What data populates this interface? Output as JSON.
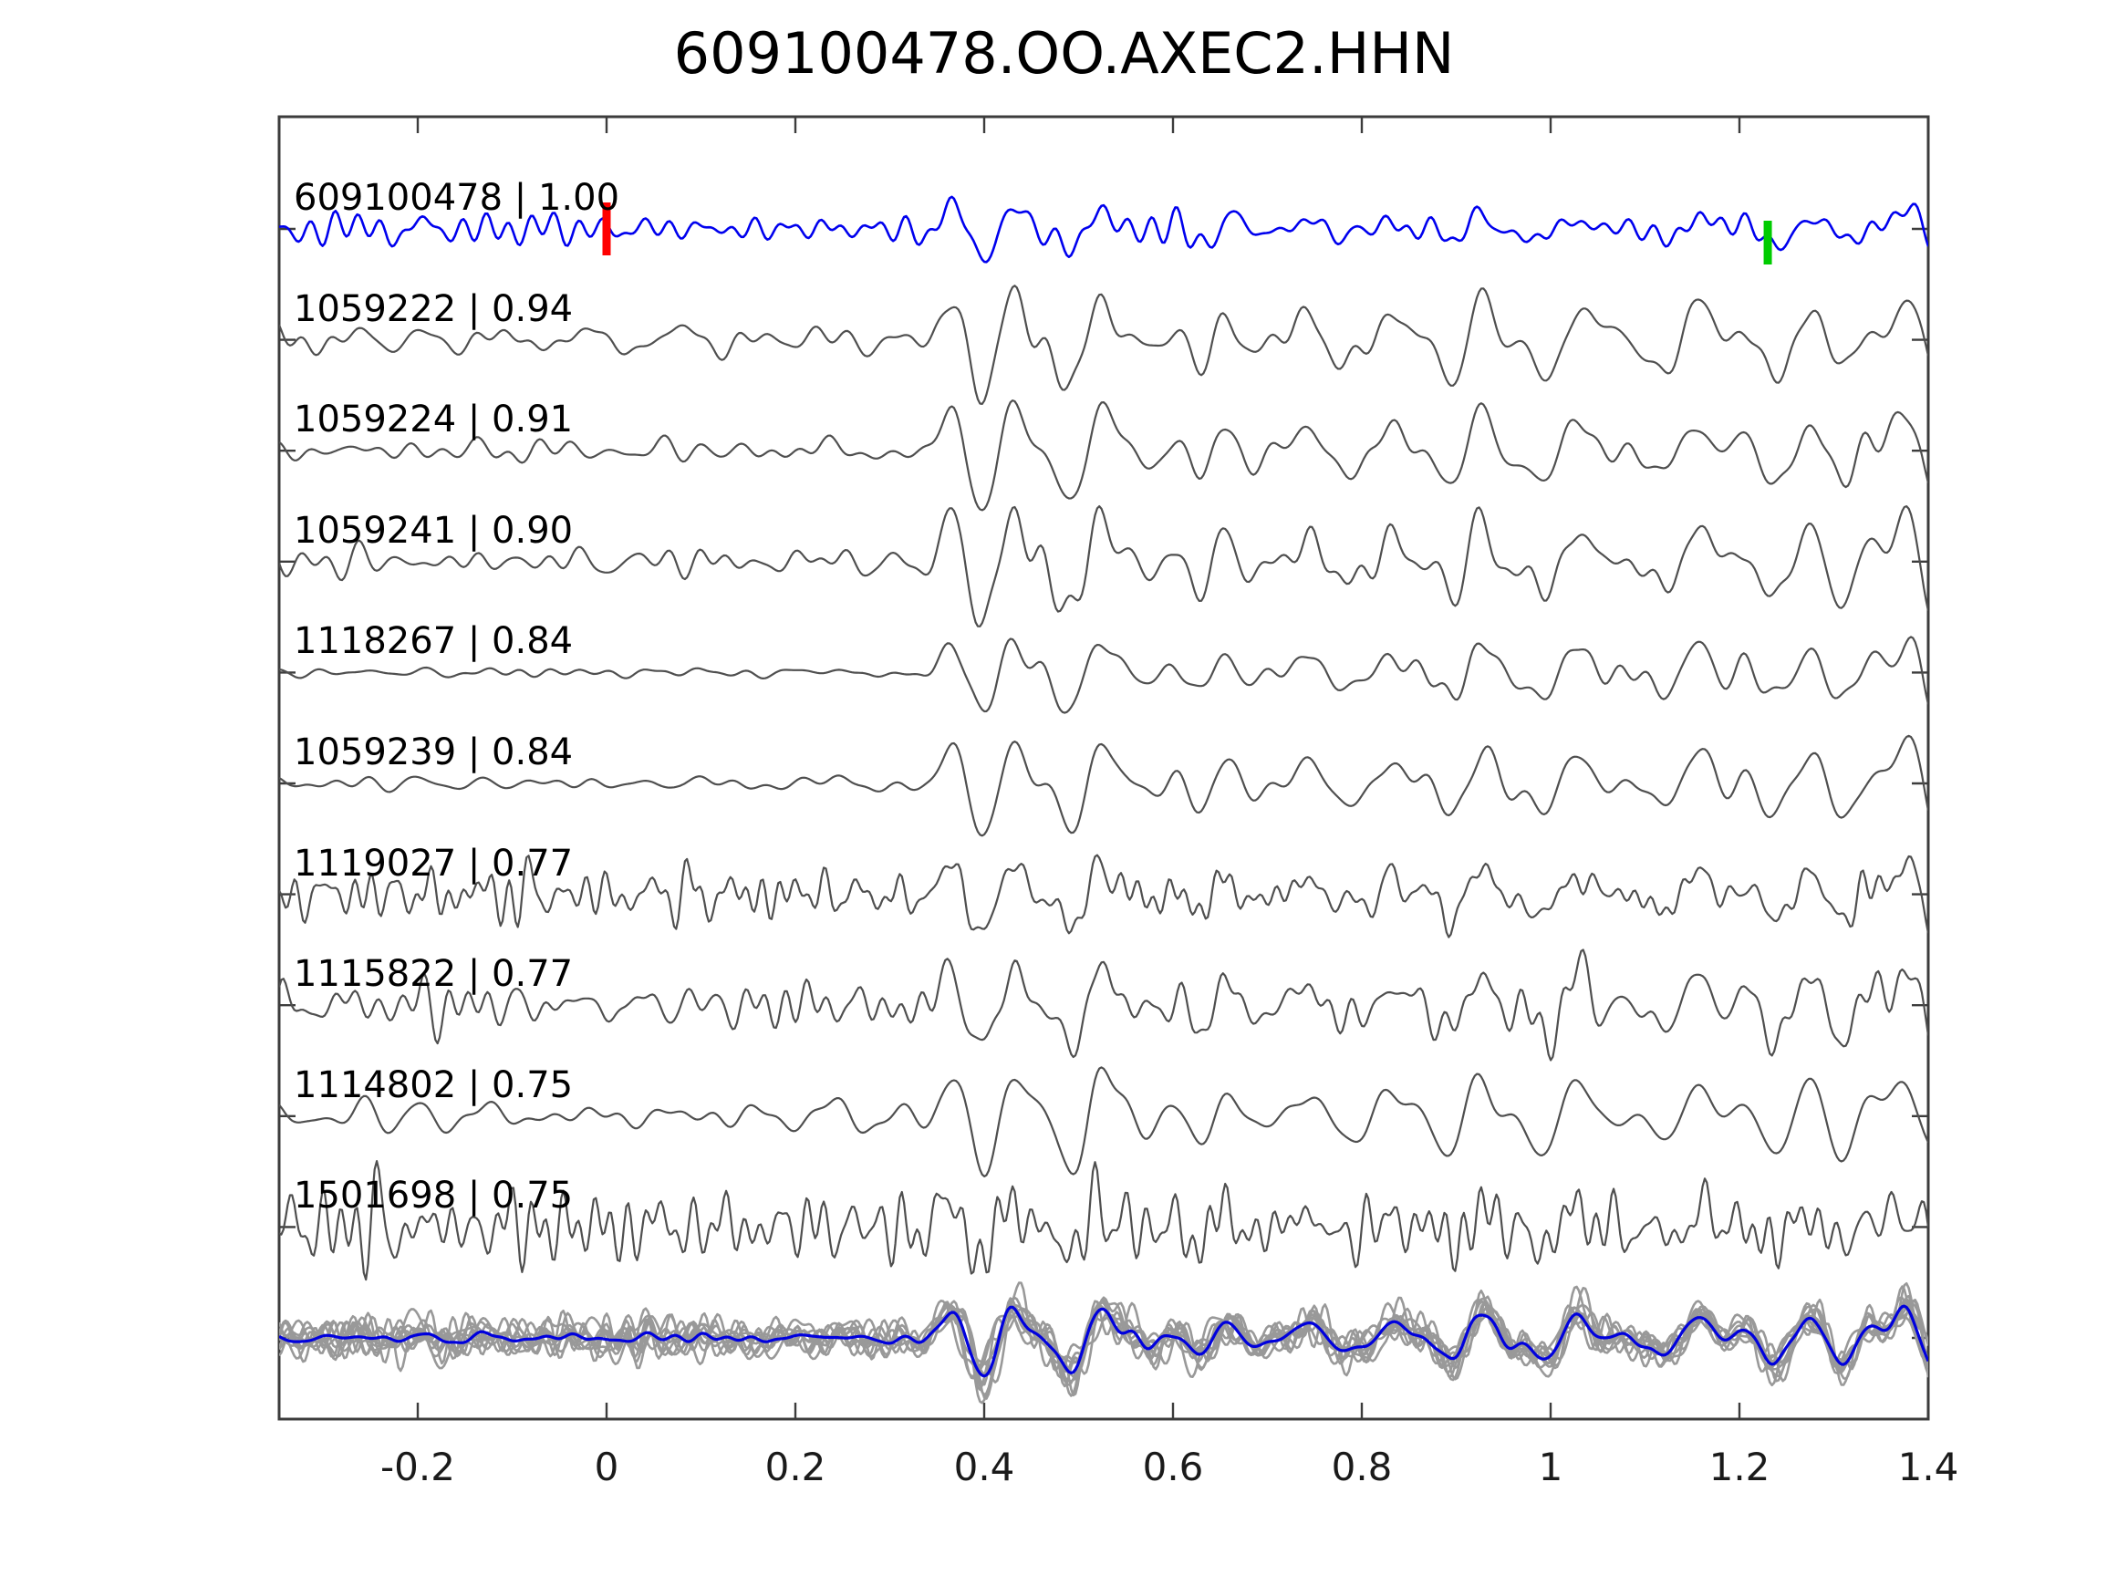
{
  "title": "609100478.OO.AXEC2.HHN",
  "chart_data": {
    "type": "line",
    "title": "609100478.OO.AXEC2.HHN",
    "xlabel": "",
    "ylabel": "",
    "xlim": [
      -0.347,
      1.4
    ],
    "grid": false,
    "legend": "none",
    "x_ticks": [
      {
        "v": -0.2,
        "label": "-0.2"
      },
      {
        "v": 0,
        "label": "0"
      },
      {
        "v": 0.2,
        "label": "0.2"
      },
      {
        "v": 0.4,
        "label": "0.4"
      },
      {
        "v": 0.6,
        "label": "0.6"
      },
      {
        "v": 0.8,
        "label": "0.8"
      },
      {
        "v": 1,
        "label": "1"
      },
      {
        "v": 1.2,
        "label": "1.2"
      },
      {
        "v": 1.4,
        "label": "1.4"
      }
    ],
    "colors": {
      "template_blue": "#0000ee",
      "match_gray": "#4f4f4f",
      "overlay_gray": "#999999",
      "overlay_blue": "#0000dd",
      "start_marker_red": "#ff0000",
      "pick_marker_green": "#00cc00",
      "spine": "#3c3c3c",
      "text": "#000000"
    },
    "markers": [
      {
        "name": "template-start-marker",
        "t": 0,
        "row": 0,
        "color": "#ff0000",
        "y_span": [
          -29,
          29
        ]
      },
      {
        "name": "pick-time-marker",
        "t": 1.23,
        "row": 0,
        "color": "#00cc00",
        "y_span": [
          -9,
          39
        ]
      }
    ],
    "traces": [
      {
        "id": "609100478",
        "cc": "1.00",
        "label": "609100478 | 1.00",
        "color": "#0000ee",
        "amp": 36,
        "share": 0.78,
        "freq_mult": 1.15,
        "seed": 21,
        "noise_env": [
          [
            -0.35,
            0.5
          ],
          [
            0.35,
            0.45
          ],
          [
            1.4,
            0.42
          ]
        ]
      },
      {
        "id": "1059222",
        "cc": "0.94",
        "label": "1059222 | 0.94",
        "color": "#4f4f4f",
        "amp": 60,
        "share": 1,
        "freq_mult": 1,
        "seed": 22,
        "noise_env": [
          [
            -0.35,
            0.28
          ],
          [
            1.4,
            0.3
          ]
        ]
      },
      {
        "id": "1059224",
        "cc": "0.91",
        "label": "1059224 | 0.91",
        "color": "#4f4f4f",
        "amp": 58,
        "share": 1,
        "freq_mult": 0.95,
        "seed": 23,
        "noise_env": [
          [
            -0.35,
            0.2
          ],
          [
            1.4,
            0.26
          ]
        ]
      },
      {
        "id": "1059241",
        "cc": "0.90",
        "label": "1059241 | 0.90",
        "color": "#4f4f4f",
        "amp": 62,
        "share": 1,
        "freq_mult": 1.05,
        "seed": 24,
        "noise_env": [
          [
            -0.35,
            0.32
          ],
          [
            1.4,
            0.3
          ]
        ]
      },
      {
        "id": "1118267",
        "cc": "0.84",
        "label": "1118267 | 0.84",
        "color": "#4f4f4f",
        "amp": 48,
        "share": 0.9,
        "freq_mult": 1,
        "seed": 25,
        "noise_env": [
          [
            -0.35,
            0.07
          ],
          [
            0.3,
            0.08
          ],
          [
            0.45,
            0.26
          ],
          [
            1.4,
            0.32
          ]
        ]
      },
      {
        "id": "1059239",
        "cc": "0.84",
        "label": "1059239 | 0.84",
        "color": "#4f4f4f",
        "amp": 56,
        "share": 0.95,
        "freq_mult": 0.85,
        "seed": 26,
        "noise_env": [
          [
            -0.35,
            0.11
          ],
          [
            0.3,
            0.13
          ],
          [
            1.4,
            0.27
          ]
        ]
      },
      {
        "id": "1119027",
        "cc": "0.77",
        "label": "1119027 | 0.77",
        "color": "#4f4f4f",
        "amp": 50,
        "share": 0.78,
        "freq_mult": 1.7,
        "seed": 27,
        "noise_env": [
          [
            -0.35,
            0.6
          ],
          [
            0.4,
            0.48
          ],
          [
            1.4,
            0.42
          ]
        ]
      },
      {
        "id": "1115822",
        "cc": "0.77",
        "label": "1115822 | 0.77",
        "color": "#4f4f4f",
        "amp": 55,
        "share": 0.88,
        "freq_mult": 1.3,
        "seed": 28,
        "noise_env": [
          [
            -0.35,
            0.42
          ],
          [
            1.4,
            0.38
          ]
        ]
      },
      {
        "id": "1114802",
        "cc": "0.75",
        "label": "1114802 | 0.75",
        "color": "#4f4f4f",
        "amp": 60,
        "share": 0.95,
        "freq_mult": 0.8,
        "seed": 29,
        "noise_env": [
          [
            -0.35,
            0.3
          ],
          [
            1.4,
            0.33
          ]
        ]
      },
      {
        "id": "1501698",
        "cc": "0.75",
        "label": "1501698 | 0.75",
        "color": "#4f4f4f",
        "amp": 52,
        "share": 0.55,
        "freq_mult": 1.55,
        "seed": 30,
        "noise_env": [
          [
            -0.35,
            0.85
          ],
          [
            0.4,
            0.72
          ],
          [
            1.4,
            0.68
          ]
        ]
      }
    ],
    "overlay": {
      "amp": 42,
      "freq_mult": 1.25,
      "noise_env": [
        [
          -0.35,
          0.52
        ],
        [
          0.38,
          0.48
        ],
        [
          1.4,
          0.45
        ]
      ],
      "seeds": [
        41,
        42,
        43,
        44,
        45,
        46,
        47,
        48,
        49,
        50
      ],
      "blue": {
        "amp": 40,
        "noise": 0.12,
        "seed": 52
      }
    },
    "common": {
      "seed": 11,
      "f_lo": 6,
      "f_hi": 22,
      "env": [
        [
          -0.35,
          0.09
        ],
        [
          0.3,
          0.11
        ],
        [
          0.36,
          0.5
        ],
        [
          0.42,
          0.95
        ],
        [
          0.5,
          1
        ],
        [
          0.62,
          0.78
        ],
        [
          0.72,
          0.92
        ],
        [
          0.85,
          0.85
        ],
        [
          1,
          0.9
        ],
        [
          1.15,
          0.75
        ],
        [
          1.28,
          0.9
        ],
        [
          1.4,
          0.85
        ]
      ],
      "wavelets": [
        [
          0.435,
          0.022,
          0.6
        ],
        [
          0.478,
          0.026,
          -0.9
        ],
        [
          0.52,
          0.02,
          0.45
        ],
        [
          0.75,
          0.035,
          0.5
        ],
        [
          0.98,
          0.03,
          -0.5
        ],
        [
          1.225,
          0.028,
          -0.45
        ],
        [
          1.3,
          0.032,
          -0.65
        ],
        [
          1.372,
          0.026,
          0.95
        ]
      ]
    }
  }
}
